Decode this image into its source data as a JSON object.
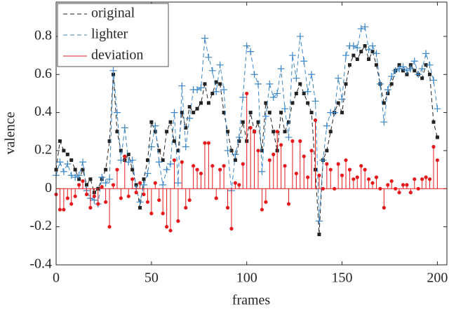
{
  "chart_data": {
    "type": "line",
    "xlabel": "frames",
    "ylabel": "valence",
    "x": [
      0,
      2,
      4,
      6,
      8,
      10,
      12,
      14,
      16,
      18,
      20,
      22,
      24,
      26,
      28,
      30,
      32,
      34,
      36,
      38,
      40,
      42,
      44,
      46,
      48,
      50,
      52,
      54,
      56,
      58,
      60,
      62,
      64,
      66,
      68,
      70,
      72,
      74,
      76,
      78,
      80,
      82,
      84,
      86,
      88,
      90,
      92,
      94,
      96,
      98,
      100,
      102,
      104,
      106,
      108,
      110,
      112,
      114,
      116,
      118,
      120,
      122,
      124,
      126,
      128,
      130,
      132,
      134,
      136,
      138,
      140,
      142,
      144,
      146,
      148,
      150,
      152,
      154,
      156,
      158,
      160,
      162,
      164,
      166,
      168,
      170,
      172,
      174,
      176,
      178,
      180,
      182,
      184,
      186,
      188,
      190,
      192,
      194,
      196,
      198,
      200
    ],
    "series": [
      {
        "name": "original",
        "color": "#222222",
        "kind": "line",
        "marker": "square",
        "values": [
          0.1,
          0.25,
          0.2,
          0.18,
          0.15,
          0.1,
          0.05,
          0.1,
          0.02,
          0.05,
          -0.02,
          0.0,
          0.05,
          0.1,
          0.25,
          0.6,
          0.3,
          0.2,
          0.15,
          0.18,
          0.1,
          0.02,
          -0.1,
          0.05,
          0.15,
          0.35,
          0.3,
          0.2,
          0.15,
          0.3,
          0.35,
          0.25,
          0.2,
          0.4,
          0.32,
          0.43,
          0.4,
          0.42,
          0.45,
          0.55,
          0.45,
          0.5,
          0.56,
          0.55,
          0.4,
          0.3,
          0.2,
          0.15,
          0.25,
          0.35,
          0.25,
          0.4,
          0.3,
          0.35,
          0.2,
          0.45,
          0.4,
          0.3,
          0.2,
          0.4,
          0.3,
          0.35,
          0.45,
          0.5,
          0.55,
          0.5,
          0.45,
          0.4,
          0.1,
          -0.24,
          0.15,
          0.2,
          0.3,
          0.4,
          0.45,
          0.4,
          0.55,
          0.65,
          0.7,
          0.68,
          0.72,
          0.75,
          0.68,
          0.72,
          0.65,
          0.55,
          0.45,
          0.5,
          0.55,
          0.62,
          0.65,
          0.62,
          0.6,
          0.65,
          0.62,
          0.6,
          0.58,
          0.65,
          0.6,
          0.35,
          0.27
        ]
      },
      {
        "name": "lighter",
        "color": "#3a86c8",
        "kind": "line",
        "marker": "plus",
        "values": [
          0.07,
          0.14,
          0.09,
          0.13,
          0.07,
          0.06,
          0.07,
          0.14,
          -0.01,
          -0.05,
          -0.06,
          -0.08,
          0.06,
          0.03,
          0.05,
          0.62,
          0.4,
          0.15,
          0.32,
          0.14,
          0.15,
          0.0,
          -0.07,
          0.02,
          0.08,
          0.22,
          0.33,
          0.14,
          0.02,
          0.1,
          0.13,
          0.4,
          0.03,
          0.54,
          0.22,
          0.37,
          0.52,
          0.52,
          0.53,
          0.79,
          0.69,
          0.62,
          0.51,
          0.65,
          0.52,
          0.2,
          -0.01,
          0.18,
          0.27,
          0.48,
          0.75,
          0.72,
          0.6,
          0.55,
          0.09,
          0.38,
          0.55,
          0.48,
          0.5,
          0.63,
          0.42,
          0.27,
          0.7,
          0.58,
          0.8,
          0.67,
          0.51,
          0.6,
          0.46,
          -0.17,
          0.15,
          0.33,
          0.4,
          0.4,
          0.58,
          0.47,
          0.7,
          0.75,
          0.75,
          0.74,
          0.84,
          0.85,
          0.73,
          0.75,
          0.71,
          0.55,
          0.35,
          0.52,
          0.59,
          0.62,
          0.63,
          0.64,
          0.62,
          0.63,
          0.67,
          0.6,
          0.63,
          0.71,
          0.65,
          0.57,
          0.42
        ]
      },
      {
        "name": "deviation",
        "color": "#e8191c",
        "kind": "stem",
        "marker": "dot",
        "values": [
          -0.03,
          -0.11,
          -0.11,
          -0.05,
          -0.08,
          -0.04,
          0.02,
          0.04,
          -0.03,
          -0.1,
          -0.04,
          -0.08,
          0.01,
          -0.07,
          -0.2,
          0.02,
          0.1,
          -0.05,
          0.17,
          -0.04,
          0.05,
          -0.02,
          0.03,
          -0.03,
          -0.07,
          -0.13,
          0.03,
          -0.06,
          -0.13,
          -0.2,
          -0.22,
          0.15,
          -0.17,
          0.14,
          -0.1,
          -0.06,
          0.12,
          0.1,
          0.08,
          0.24,
          0.24,
          0.12,
          -0.05,
          0.1,
          0.12,
          -0.1,
          -0.21,
          0.03,
          0.02,
          0.13,
          0.5,
          0.32,
          0.3,
          0.2,
          -0.11,
          -0.07,
          0.15,
          0.18,
          0.3,
          0.23,
          0.12,
          -0.08,
          0.25,
          0.08,
          0.25,
          0.17,
          0.06,
          0.2,
          0.36,
          0.07,
          0.0,
          0.13,
          0.1,
          0.0,
          0.13,
          0.07,
          0.15,
          0.1,
          0.05,
          0.06,
          0.12,
          0.1,
          0.05,
          0.03,
          0.06,
          0.0,
          -0.1,
          0.02,
          0.04,
          0.0,
          -0.02,
          0.02,
          0.02,
          -0.02,
          0.05,
          0.0,
          0.05,
          0.06,
          0.05,
          0.22,
          0.15
        ]
      }
    ],
    "xlim": [
      0,
      205
    ],
    "xticks": [
      0,
      50,
      100,
      150,
      200
    ],
    "ylim": [
      -0.4,
      0.98
    ],
    "yticks": [
      -0.4,
      -0.2,
      0,
      0.2,
      0.4,
      0.6,
      0.8
    ],
    "legend": "top-left"
  }
}
